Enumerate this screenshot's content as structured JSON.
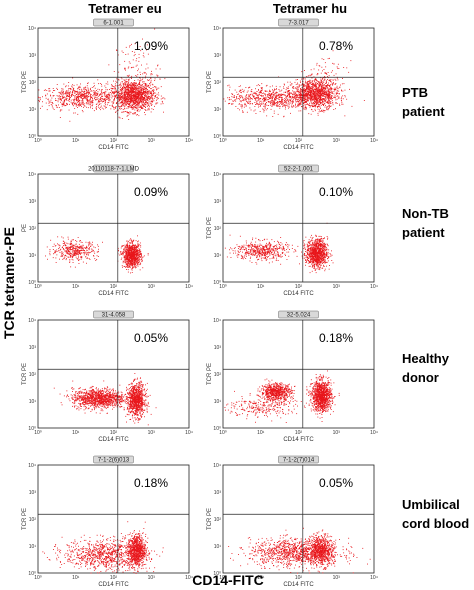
{
  "chart_data": {
    "type": "scatter",
    "columns": [
      "Tetramer eu",
      "Tetramer hu"
    ],
    "rows": [
      "PTB patient",
      "Non-TB patient",
      "Healthy donor",
      "Umbilical cord blood"
    ],
    "ylabel": "TCR tetramer-PE",
    "xlabel": "CD14-FITC",
    "panel_xlabel": "CD14 FITC",
    "panel_ylabel": "TCR PE",
    "panel_ylabel_alt": "PE",
    "xscale": "log",
    "yscale": "log",
    "xlim": [
      1,
      10000
    ],
    "ylim": [
      1,
      10000
    ],
    "ticks": [
      "10⁰",
      "10¹",
      "10²",
      "10³",
      "10⁴"
    ],
    "dot_color": "#e8161b",
    "panels": [
      {
        "row": 0,
        "col": 0,
        "tag": "6-1.001",
        "percent": "1.09%",
        "gate": [
          130,
          150
        ],
        "clusters": [
          {
            "x": 14,
            "y": 28,
            "sx": 0.55,
            "sy": 0.22,
            "n": 700
          },
          {
            "x": 330,
            "y": 32,
            "sx": 0.28,
            "sy": 0.28,
            "n": 1300
          },
          {
            "x": 400,
            "y": 300,
            "sx": 0.3,
            "sy": 0.55,
            "n": 120
          }
        ]
      },
      {
        "row": 0,
        "col": 1,
        "tag": "7-3.017",
        "percent": "0.78%",
        "gate": [
          130,
          150
        ],
        "clusters": [
          {
            "x": 18,
            "y": 26,
            "sx": 0.55,
            "sy": 0.22,
            "n": 700
          },
          {
            "x": 280,
            "y": 38,
            "sx": 0.3,
            "sy": 0.27,
            "n": 1200
          },
          {
            "x": 500,
            "y": 160,
            "sx": 0.28,
            "sy": 0.45,
            "n": 80
          }
        ]
      },
      {
        "row": 1,
        "col": 0,
        "tag": "20110118-7-1.LMD",
        "percent": "0.09%",
        "gate": [
          130,
          150
        ],
        "clusters": [
          {
            "x": 9,
            "y": 15,
            "sx": 0.3,
            "sy": 0.18,
            "n": 400
          },
          {
            "x": 300,
            "y": 10,
            "sx": 0.12,
            "sy": 0.22,
            "n": 900
          }
        ]
      },
      {
        "row": 1,
        "col": 1,
        "tag": "52-2-1.001",
        "percent": "0.10%",
        "gate": [
          130,
          150
        ],
        "clusters": [
          {
            "x": 10,
            "y": 15,
            "sx": 0.35,
            "sy": 0.18,
            "n": 500
          },
          {
            "x": 300,
            "y": 12,
            "sx": 0.14,
            "sy": 0.26,
            "n": 1000
          }
        ]
      },
      {
        "row": 2,
        "col": 0,
        "tag": "31-4.058",
        "percent": "0.05%",
        "gate": [
          130,
          150
        ],
        "clusters": [
          {
            "x": 40,
            "y": 13,
            "sx": 0.35,
            "sy": 0.18,
            "n": 1100
          },
          {
            "x": 400,
            "y": 11,
            "sx": 0.12,
            "sy": 0.3,
            "n": 900
          }
        ]
      },
      {
        "row": 2,
        "col": 1,
        "tag": "32-5.024",
        "percent": "0.18%",
        "gate": [
          130,
          150
        ],
        "clusters": [
          {
            "x": 25,
            "y": 22,
            "sx": 0.2,
            "sy": 0.16,
            "n": 700
          },
          {
            "x": 400,
            "y": 16,
            "sx": 0.13,
            "sy": 0.28,
            "n": 1100
          },
          {
            "x": 10,
            "y": 6,
            "sx": 0.45,
            "sy": 0.2,
            "n": 250
          }
        ]
      },
      {
        "row": 3,
        "col": 0,
        "tag": "7-1-2(6)013",
        "percent": "0.18%",
        "gate": [
          130,
          150
        ],
        "clusters": [
          {
            "x": 60,
            "y": 5,
            "sx": 0.55,
            "sy": 0.28,
            "n": 900
          },
          {
            "x": 400,
            "y": 7,
            "sx": 0.12,
            "sy": 0.3,
            "n": 800
          }
        ]
      },
      {
        "row": 3,
        "col": 1,
        "tag": "7-1-2(7)014",
        "percent": "0.05%",
        "gate": [
          130,
          150
        ],
        "clusters": [
          {
            "x": 80,
            "y": 6,
            "sx": 0.6,
            "sy": 0.25,
            "n": 1100
          },
          {
            "x": 400,
            "y": 7,
            "sx": 0.15,
            "sy": 0.28,
            "n": 600
          }
        ]
      }
    ]
  }
}
